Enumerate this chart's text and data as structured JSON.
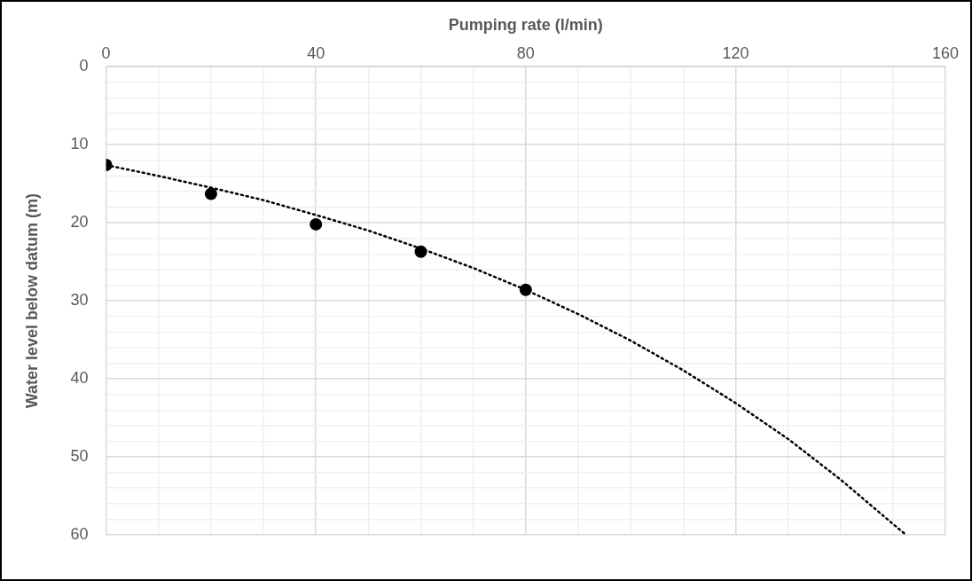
{
  "chart_data": {
    "type": "scatter",
    "xlabel": "Pumping rate (l/min)",
    "ylabel": "Water level below datum (m)",
    "xlim": [
      0,
      160
    ],
    "xticks": [
      0,
      {
        "value": 10,
        "label": null
      },
      {
        "value": 20,
        "label": null
      },
      {
        "value": 30,
        "label": null
      },
      40,
      {
        "value": 50,
        "label": null
      },
      {
        "value": 60,
        "label": null
      },
      {
        "value": 70,
        "label": null
      },
      80,
      {
        "value": 90,
        "label": null
      },
      {
        "value": 100,
        "label": null
      },
      {
        "value": 110,
        "label": null
      },
      120,
      {
        "value": 130,
        "label": null
      },
      {
        "value": 140,
        "label": null
      },
      {
        "value": 150,
        "label": null
      },
      160
    ],
    "ylim": [
      60,
      0
    ],
    "yticks": [
      0,
      {
        "value": 2,
        "label": null
      },
      {
        "value": 4,
        "label": null
      },
      {
        "value": 6,
        "label": null
      },
      {
        "value": 8,
        "label": null
      },
      10,
      {
        "value": 12,
        "label": null
      },
      {
        "value": 14,
        "label": null
      },
      {
        "value": 16,
        "label": null
      },
      {
        "value": 18,
        "label": null
      },
      20,
      {
        "value": 22,
        "label": null
      },
      {
        "value": 24,
        "label": null
      },
      {
        "value": 26,
        "label": null
      },
      {
        "value": 28,
        "label": null
      },
      30,
      {
        "value": 32,
        "label": null
      },
      {
        "value": 34,
        "label": null
      },
      {
        "value": 36,
        "label": null
      },
      {
        "value": 38,
        "label": null
      },
      40,
      {
        "value": 42,
        "label": null
      },
      {
        "value": 44,
        "label": null
      },
      {
        "value": 46,
        "label": null
      },
      {
        "value": 48,
        "label": null
      },
      50,
      {
        "value": 52,
        "label": null
      },
      {
        "value": 54,
        "label": null
      },
      {
        "value": 56,
        "label": null
      },
      {
        "value": 58,
        "label": null
      },
      60
    ],
    "grid": true,
    "legend": false,
    "marker": "circle",
    "series": [
      {
        "color": "#000000",
        "x": [
          0,
          20,
          40,
          60,
          80
        ],
        "values": [
          12.6,
          16.3,
          20.2,
          23.7,
          28.6
        ]
      },
      {
        "type": "line",
        "color": "#000000",
        "line_style": "dotted",
        "marker": "none",
        "x": [
          0,
          10,
          20,
          30,
          40,
          50,
          60,
          70,
          80,
          90,
          100,
          110,
          120,
          130,
          140,
          150,
          152.5
        ],
        "values": [
          12.6,
          14,
          15.5,
          17.1,
          19,
          21,
          23.3,
          25.8,
          28.6,
          31.7,
          35.1,
          38.9,
          43.1,
          47.7,
          52.9,
          58.6,
          60
        ]
      }
    ]
  }
}
